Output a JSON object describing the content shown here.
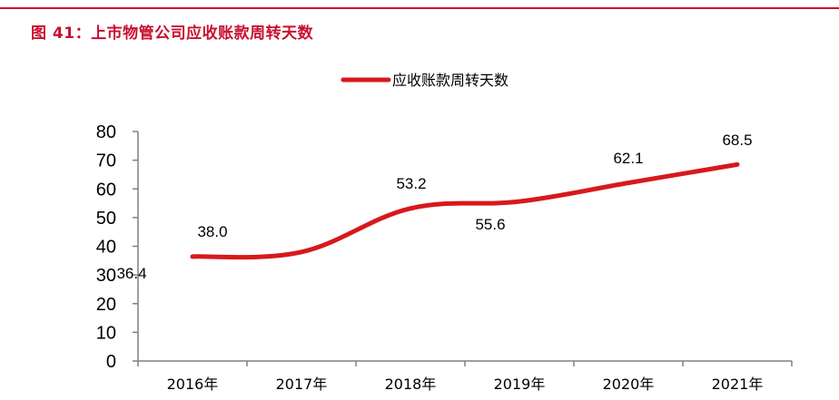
{
  "figure": {
    "title": "图 41：上市物管公司应收账款周转天数"
  },
  "colors": {
    "accent": "#c8102e",
    "series_line": "#d7191c",
    "axis": "#808080"
  },
  "chart_data": {
    "type": "line",
    "categories": [
      "2016年",
      "2017年",
      "2018年",
      "2019年",
      "2020年",
      "2021年"
    ],
    "series": [
      {
        "name": "应收账款周转天数",
        "values": [
          36.4,
          38.0,
          53.2,
          55.6,
          62.1,
          68.5
        ]
      }
    ],
    "data_labels": [
      "36.4",
      "38.0",
      "53.2",
      "55.6",
      "62.1",
      "68.5"
    ],
    "y_ticks": [
      "0",
      "10",
      "20",
      "30",
      "40",
      "50",
      "60",
      "70",
      "80"
    ],
    "ylim": [
      0,
      80
    ],
    "grid": false,
    "legend_position": "top-center",
    "smooth": true
  }
}
